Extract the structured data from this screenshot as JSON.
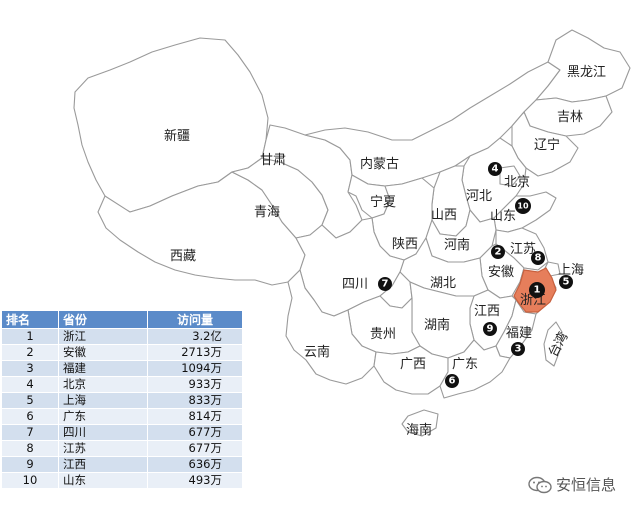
{
  "provinces": {
    "xinjiang": "新疆",
    "xizang": "西藏",
    "qinghai": "青海",
    "gansu": "甘肃",
    "neimenggu": "内蒙古",
    "heilongjiang": "黑龙江",
    "jilin": "吉林",
    "liaoning": "辽宁",
    "beijing": "北京",
    "hebei": "河北",
    "shandong": "山东",
    "ningxia": "宁夏",
    "shanxi": "山西",
    "shaanxi": "陕西",
    "henan": "河南",
    "jiangsu": "江苏",
    "shanghai": "上海",
    "anhui": "安徽",
    "zhejiang": "浙江",
    "hubei": "湖北",
    "sichuan": "四川",
    "jiangxi": "江西",
    "guizhou": "贵州",
    "hunan": "湖南",
    "fujian": "福建",
    "yunnan": "云南",
    "guangxi": "广西",
    "guangdong": "广东",
    "hainan": "海南",
    "taiwan": "台湾"
  },
  "markers": [
    "1",
    "2",
    "3",
    "4",
    "5",
    "6",
    "7",
    "8",
    "9",
    "10"
  ],
  "highlight_color": "#e67e5b",
  "table": {
    "headers": [
      "排名",
      "省份",
      "访问量"
    ],
    "rows": [
      [
        "1",
        "浙江",
        "3.2亿"
      ],
      [
        "2",
        "安徽",
        "2713万"
      ],
      [
        "3",
        "福建",
        "1094万"
      ],
      [
        "4",
        "北京",
        "933万"
      ],
      [
        "5",
        "上海",
        "833万"
      ],
      [
        "6",
        "广东",
        "814万"
      ],
      [
        "7",
        "四川",
        "677万"
      ],
      [
        "8",
        "江苏",
        "677万"
      ],
      [
        "9",
        "江西",
        "636万"
      ],
      [
        "10",
        "山东",
        "493万"
      ]
    ]
  },
  "watermark": {
    "icon": "wechat-icon",
    "text": "安恒信息"
  }
}
